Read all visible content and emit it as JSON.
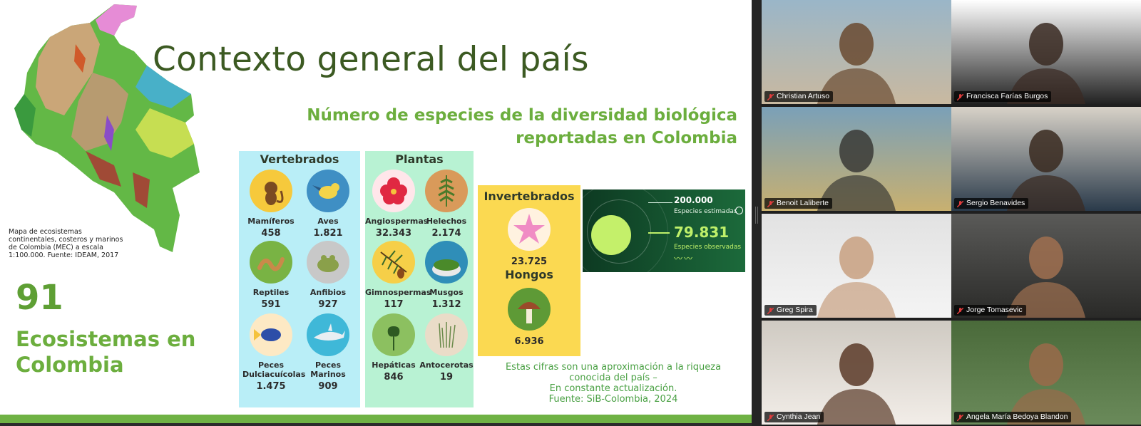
{
  "slide": {
    "title": "Contexto general del país",
    "subtitle": "Número de especies de la diversidad biológica\nreportadas en Colombia",
    "map_caption": "Mapa de ecosistemas\ncontinentales, costeros y marinos\nde Colombia (MEC) a escala\n1:100.000. Fuente: IDEAM, 2017",
    "ecosystems": {
      "number": "91",
      "label": "Ecosistemas en\nColombia"
    },
    "vertebrados": {
      "title": "Vertebrados",
      "items": [
        {
          "name": "Mamíferos",
          "value": "458"
        },
        {
          "name": "Aves",
          "value": "1.821"
        },
        {
          "name": "Reptiles",
          "value": "591"
        },
        {
          "name": "Anfibios",
          "value": "927"
        },
        {
          "name": "Peces\nDulciacuícolas",
          "value": "1.475"
        },
        {
          "name": "Peces\nMarinos",
          "value": "909"
        }
      ]
    },
    "plantas": {
      "title": "Plantas",
      "items": [
        {
          "name": "Angiospermas",
          "value": "32.343"
        },
        {
          "name": "Helechos",
          "value": "2.174"
        },
        {
          "name": "Gimnospermas",
          "value": "117"
        },
        {
          "name": "Musgos",
          "value": "1.312"
        },
        {
          "name": "Hepáticas",
          "value": "846"
        },
        {
          "name": "Antocerotas",
          "value": "19"
        }
      ]
    },
    "invertebrados": {
      "title": "Invertebrados",
      "value": "23.725"
    },
    "hongos": {
      "title": "Hongos",
      "value": "6.936"
    },
    "stats": {
      "estimated_value": "200.000",
      "estimated_label": "Especies estimadas",
      "observed_value": "79.831",
      "observed_label": "Especies observadas"
    },
    "note": "Estas cifras son una aproximación a la riqueza\nconocida del país –\nEn constante actualización.\nFuente: SiB-Colombia, 2024"
  },
  "participants": [
    {
      "name": "Christian Artuso"
    },
    {
      "name": "Francisca Farías Burgos"
    },
    {
      "name": "Benoit Laliberte"
    },
    {
      "name": "Sergio Benavides"
    },
    {
      "name": "Greg Spira"
    },
    {
      "name": "Jorge Tomasevic"
    },
    {
      "name": "Cynthia Jean"
    },
    {
      "name": "Angela María Bedoya Blandon"
    }
  ],
  "colors": {
    "title_green": "#3c5a22",
    "accent_green": "#6cae3e",
    "vertebrados_bg": "#b9eef7",
    "plantas_bg": "#b8f2d3",
    "invertebrados_bg": "#fbd951",
    "muted_mic": "#e03c3c"
  }
}
